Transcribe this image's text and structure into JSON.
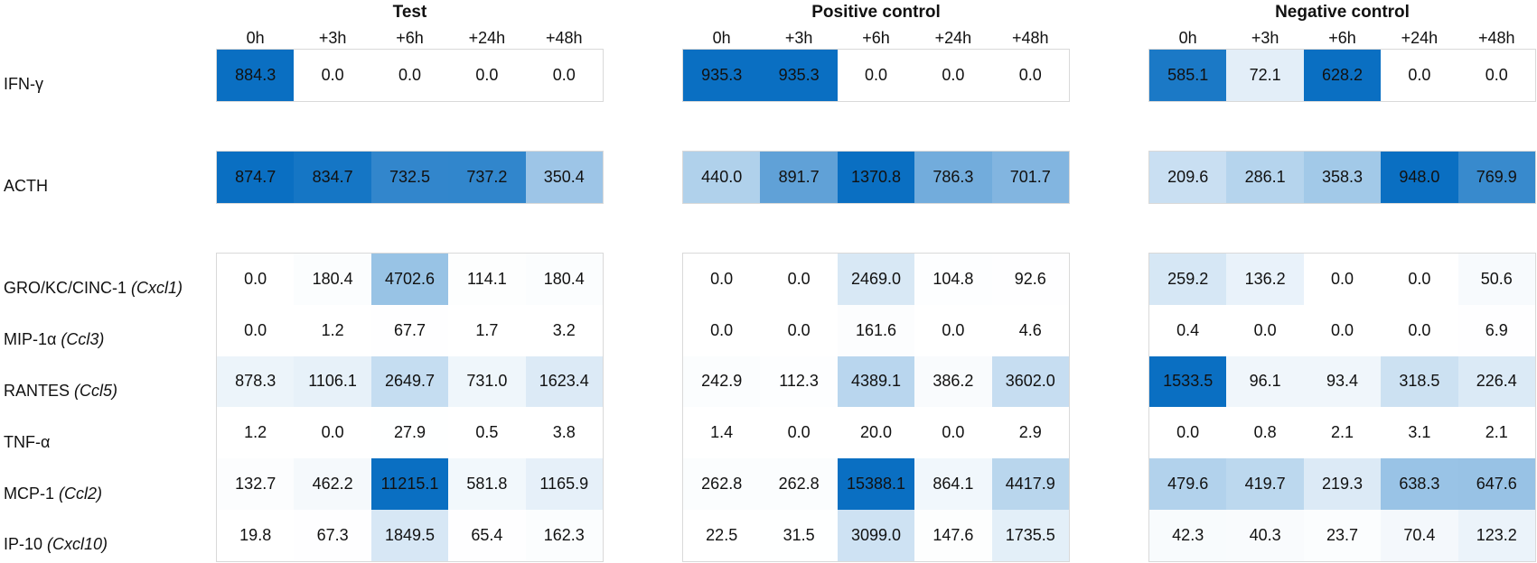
{
  "chart_data": {
    "type": "heatmap",
    "panels": [
      "Test",
      "Positive control",
      "Negative control"
    ],
    "timepoints": [
      "0h",
      "+3h",
      "+6h",
      "+24h",
      "+48h"
    ],
    "rows": [
      {
        "label": "IFN-γ",
        "gene": "",
        "group": 0
      },
      {
        "label": "ACTH",
        "gene": "",
        "group": 1
      },
      {
        "label": "GRO/KC/CINC-1 ",
        "gene": "(Cxcl1)",
        "group": 2
      },
      {
        "label": "MIP-1α ",
        "gene": "(Ccl3)",
        "group": 2
      },
      {
        "label": "RANTES ",
        "gene": "(Ccl5)",
        "group": 2
      },
      {
        "label": "TNF-α",
        "gene": "",
        "group": 2
      },
      {
        "label": "MCP-1 ",
        "gene": "(Ccl2)",
        "group": 2
      },
      {
        "label": "IP-10 ",
        "gene": "(Cxcl10)",
        "group": 2
      }
    ],
    "values": [
      [
        [
          "884.3",
          "0.0",
          "0.0",
          "0.0",
          "0.0"
        ],
        [
          "935.3",
          "935.3",
          "0.0",
          "0.0",
          "0.0"
        ],
        [
          "585.1",
          "72.1",
          "628.2",
          "0.0",
          "0.0"
        ]
      ],
      [
        [
          "874.7",
          "834.7",
          "732.5",
          "737.2",
          "350.4"
        ],
        [
          "440.0",
          "891.7",
          "1370.8",
          "786.3",
          "701.7"
        ],
        [
          "209.6",
          "286.1",
          "358.3",
          "948.0",
          "769.9"
        ]
      ],
      [
        [
          "0.0",
          "180.4",
          "4702.6",
          "114.1",
          "180.4"
        ],
        [
          "0.0",
          "0.0",
          "2469.0",
          "104.8",
          "92.6"
        ],
        [
          "259.2",
          "136.2",
          "0.0",
          "0.0",
          "50.6"
        ]
      ],
      [
        [
          "0.0",
          "1.2",
          "67.7",
          "1.7",
          "3.2"
        ],
        [
          "0.0",
          "0.0",
          "161.6",
          "0.0",
          "4.6"
        ],
        [
          "0.4",
          "0.0",
          "0.0",
          "0.0",
          "6.9"
        ]
      ],
      [
        [
          "878.3",
          "1106.1",
          "2649.7",
          "731.0",
          "1623.4"
        ],
        [
          "242.9",
          "112.3",
          "4389.1",
          "386.2",
          "3602.0"
        ],
        [
          "1533.5",
          "96.1",
          "93.4",
          "318.5",
          "226.4"
        ]
      ],
      [
        [
          "1.2",
          "0.0",
          "27.9",
          "0.5",
          "3.8"
        ],
        [
          "1.4",
          "0.0",
          "20.0",
          "0.0",
          "2.9"
        ],
        [
          "0.0",
          "0.8",
          "2.1",
          "3.1",
          "2.1"
        ]
      ],
      [
        [
          "132.7",
          "462.2",
          "11215.1",
          "581.8",
          "1165.9"
        ],
        [
          "262.8",
          "262.8",
          "15388.1",
          "864.1",
          "4417.9"
        ],
        [
          "479.6",
          "419.7",
          "219.3",
          "638.3",
          "647.6"
        ]
      ],
      [
        [
          "19.8",
          "67.3",
          "1849.5",
          "65.4",
          "162.3"
        ],
        [
          "22.5",
          "31.5",
          "3099.0",
          "147.6",
          "1735.5"
        ],
        [
          "42.3",
          "40.3",
          "23.7",
          "70.4",
          "123.2"
        ]
      ]
    ],
    "colors": {
      "low": "#ffffff",
      "high": "#0a6fc2"
    }
  }
}
